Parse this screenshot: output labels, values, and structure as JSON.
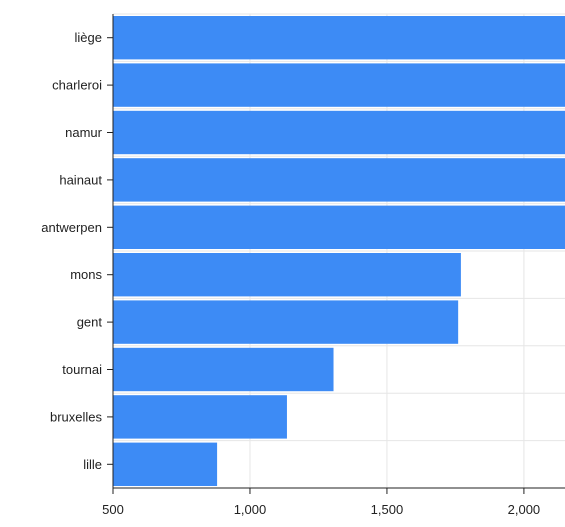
{
  "chart_data": {
    "type": "bar",
    "orientation": "horizontal",
    "title": "",
    "xlabel": "",
    "ylabel": "",
    "categories": [
      "liège",
      "charleroi",
      "namur",
      "hainaut",
      "antwerpen",
      "mons",
      "gent",
      "tournai",
      "bruxelles",
      "lille"
    ],
    "values": [
      2180,
      2180,
      2180,
      2180,
      2180,
      1770,
      1760,
      1305,
      1135,
      880
    ],
    "xlim": [
      500,
      2150
    ],
    "xticks": [
      500,
      1000,
      1500,
      2000
    ],
    "xtick_labels": [
      "500",
      "1,000",
      "1,500",
      "2,000"
    ],
    "grid": true,
    "legend": "none",
    "bar_color": "#3d8bf5"
  }
}
